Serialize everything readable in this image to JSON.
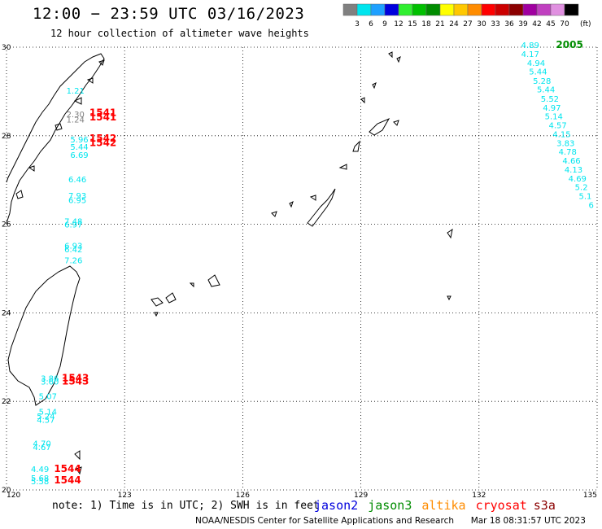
{
  "header": {
    "title": "12:00 − 23:59 UTC 03/16/2023",
    "subtitle": "12 hour collection of altimeter wave heights"
  },
  "legend": {
    "unit_label": "(ft)",
    "bins": [
      {
        "label": "3",
        "color": "#808080"
      },
      {
        "label": "6",
        "color": "#00e5ee"
      },
      {
        "label": "9",
        "color": "#1ea0ff"
      },
      {
        "label": "12",
        "color": "#0000dd"
      },
      {
        "label": "15",
        "color": "#30ef30"
      },
      {
        "label": "18",
        "color": "#00c000"
      },
      {
        "label": "21",
        "color": "#008c00"
      },
      {
        "label": "24",
        "color": "#ffff00"
      },
      {
        "label": "27",
        "color": "#ffc800"
      },
      {
        "label": "30",
        "color": "#ff8c00"
      },
      {
        "label": "33",
        "color": "#ff0000"
      },
      {
        "label": "36",
        "color": "#cc0000"
      },
      {
        "label": "39",
        "color": "#8b0000"
      },
      {
        "label": "42",
        "color": "#a000a0"
      },
      {
        "label": "45",
        "color": "#c040c0"
      },
      {
        "label": "70",
        "color": "#e090e0"
      },
      {
        "label": "",
        "color": "#000000"
      }
    ]
  },
  "map": {
    "lon_range": [
      120,
      135
    ],
    "lat_range": [
      20,
      30
    ],
    "lon_ticks": [
      "120",
      "123",
      "126",
      "129",
      "132",
      "135"
    ],
    "lat_ticks": [
      "30",
      "28",
      "26",
      "24",
      "22",
      "20"
    ],
    "grid": true,
    "wave_labels": [
      {
        "lon": 121.75,
        "lat": 28.95,
        "text": "1.21",
        "color": "#00e5ee"
      },
      {
        "lon": 121.75,
        "lat": 28.42,
        "text": "2.30",
        "color": "#808080"
      },
      {
        "lon": 121.75,
        "lat": 28.3,
        "text": "1.24",
        "color": "#808080"
      },
      {
        "lon": 121.85,
        "lat": 27.85,
        "text": "5.96",
        "color": "#00e5ee"
      },
      {
        "lon": 121.85,
        "lat": 27.68,
        "text": "5.44",
        "color": "#00e5ee"
      },
      {
        "lon": 121.85,
        "lat": 27.5,
        "text": "6.69",
        "color": "#00e5ee"
      },
      {
        "lon": 121.8,
        "lat": 26.95,
        "text": "6.46",
        "color": "#00e5ee"
      },
      {
        "lon": 121.8,
        "lat": 26.58,
        "text": "7.93",
        "color": "#00e5ee"
      },
      {
        "lon": 121.8,
        "lat": 26.48,
        "text": "6.95",
        "color": "#00e5ee"
      },
      {
        "lon": 121.7,
        "lat": 26.0,
        "text": "7.48",
        "color": "#00e5ee"
      },
      {
        "lon": 121.7,
        "lat": 25.93,
        "text": "6.97",
        "color": "#00e5ee"
      },
      {
        "lon": 121.7,
        "lat": 25.45,
        "text": "6.93",
        "color": "#00e5ee"
      },
      {
        "lon": 121.7,
        "lat": 25.37,
        "text": "6.42",
        "color": "#00e5ee"
      },
      {
        "lon": 121.7,
        "lat": 25.12,
        "text": "7.26",
        "color": "#00e5ee"
      },
      {
        "lon": 121.1,
        "lat": 22.45,
        "text": "3.86",
        "color": "#00e5ee"
      },
      {
        "lon": 121.1,
        "lat": 22.38,
        "text": "3.60",
        "color": "#00e5ee"
      },
      {
        "lon": 121.05,
        "lat": 22.05,
        "text": "5.07",
        "color": "#00e5ee"
      },
      {
        "lon": 121.05,
        "lat": 21.7,
        "text": "5.14",
        "color": "#00e5ee"
      },
      {
        "lon": 121.0,
        "lat": 21.6,
        "text": "5.24",
        "color": "#00e5ee"
      },
      {
        "lon": 121.0,
        "lat": 21.52,
        "text": "4.57",
        "color": "#00e5ee"
      },
      {
        "lon": 120.9,
        "lat": 20.98,
        "text": "4.70",
        "color": "#00e5ee"
      },
      {
        "lon": 120.9,
        "lat": 20.9,
        "text": "4.67",
        "color": "#00e5ee"
      },
      {
        "lon": 120.85,
        "lat": 20.4,
        "text": "4.49",
        "color": "#00e5ee"
      },
      {
        "lon": 120.85,
        "lat": 20.2,
        "text": "5.68",
        "color": "#00e5ee"
      },
      {
        "lon": 120.85,
        "lat": 20.13,
        "text": "5.58",
        "color": "#00e5ee"
      },
      {
        "lon": 133.3,
        "lat": 29.98,
        "text": "4.89",
        "color": "#00e5ee"
      },
      {
        "lon": 133.3,
        "lat": 29.78,
        "text": "4.17",
        "color": "#00e5ee"
      },
      {
        "lon": 133.45,
        "lat": 29.58,
        "text": "4.94",
        "color": "#00e5ee"
      },
      {
        "lon": 133.5,
        "lat": 29.38,
        "text": "5.44",
        "color": "#00e5ee"
      },
      {
        "lon": 133.6,
        "lat": 29.17,
        "text": "5.28",
        "color": "#00e5ee"
      },
      {
        "lon": 133.7,
        "lat": 28.98,
        "text": "5.44",
        "color": "#00e5ee"
      },
      {
        "lon": 133.8,
        "lat": 28.77,
        "text": "5.52",
        "color": "#00e5ee"
      },
      {
        "lon": 133.85,
        "lat": 28.57,
        "text": "4.97",
        "color": "#00e5ee"
      },
      {
        "lon": 133.9,
        "lat": 28.37,
        "text": "5.14",
        "color": "#00e5ee"
      },
      {
        "lon": 134.0,
        "lat": 28.17,
        "text": "4.57",
        "color": "#00e5ee"
      },
      {
        "lon": 134.1,
        "lat": 27.97,
        "text": "4.15",
        "color": "#00e5ee"
      },
      {
        "lon": 134.2,
        "lat": 27.77,
        "text": "3.83",
        "color": "#00e5ee"
      },
      {
        "lon": 134.25,
        "lat": 27.57,
        "text": "4.78",
        "color": "#00e5ee"
      },
      {
        "lon": 134.35,
        "lat": 27.37,
        "text": "4.66",
        "color": "#00e5ee"
      },
      {
        "lon": 134.4,
        "lat": 27.17,
        "text": "4.13",
        "color": "#00e5ee"
      },
      {
        "lon": 134.5,
        "lat": 26.97,
        "text": "4.69",
        "color": "#00e5ee"
      },
      {
        "lon": 134.6,
        "lat": 26.77,
        "text": "5.2",
        "color": "#00e5ee"
      },
      {
        "lon": 134.7,
        "lat": 26.57,
        "text": "5.1",
        "color": "#00e5ee"
      },
      {
        "lon": 134.85,
        "lat": 26.37,
        "text": "6",
        "color": "#00e5ee"
      }
    ],
    "pass_labels": [
      {
        "lon": 122.45,
        "lat": 28.45,
        "text": "1541",
        "color": "#ff0000"
      },
      {
        "lon": 122.45,
        "lat": 28.35,
        "text": "1541",
        "color": "#ff0000"
      },
      {
        "lon": 122.45,
        "lat": 27.87,
        "text": "1542",
        "color": "#ff0000"
      },
      {
        "lon": 122.45,
        "lat": 27.77,
        "text": "1542",
        "color": "#ff0000"
      },
      {
        "lon": 121.75,
        "lat": 22.45,
        "text": "1543",
        "color": "#ff0000"
      },
      {
        "lon": 121.75,
        "lat": 22.38,
        "text": "1543",
        "color": "#ff0000"
      },
      {
        "lon": 121.55,
        "lat": 20.4,
        "text": "1544",
        "color": "#ff0000"
      },
      {
        "lon": 121.55,
        "lat": 20.15,
        "text": "1544",
        "color": "#ff0000"
      },
      {
        "lon": 134.3,
        "lat": 29.98,
        "text": "2005",
        "color": "#008c00"
      }
    ]
  },
  "footer": {
    "note": "note: 1) Time is in UTC; 2) SWH is in feet",
    "satellites": [
      {
        "name": "jason2",
        "color": "#0000dd"
      },
      {
        "name": "jason3",
        "color": "#008c00"
      },
      {
        "name": "altika",
        "color": "#ff8c00"
      },
      {
        "name": "cryosat",
        "color": "#ff0000"
      },
      {
        "name": "s3a",
        "color": "#8b0000"
      }
    ],
    "credit": "NOAA/NESDIS Center for Satellite Applications and Research",
    "timestamp": "Mar 18 08:31:57 UTC 2023"
  }
}
